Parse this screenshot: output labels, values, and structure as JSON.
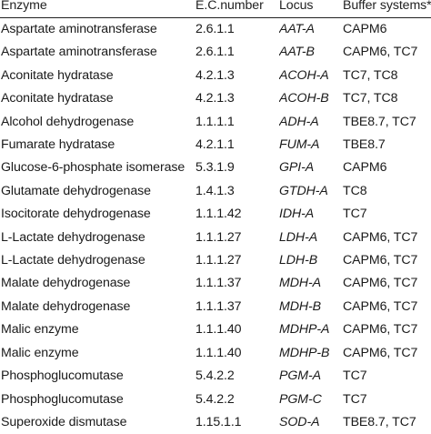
{
  "table": {
    "headers": [
      "Enzyme",
      "E.C.number",
      "Locus",
      "Buffer systems*"
    ],
    "rows": [
      {
        "enzyme": "Aspartate aminotransferase",
        "ec": "2.6.1.1",
        "locus": "AAT-A",
        "buffer": "CAPM6"
      },
      {
        "enzyme": "Aspartate aminotransferase",
        "ec": "2.6.1.1",
        "locus": "AAT-B",
        "buffer": "CAPM6, TC7"
      },
      {
        "enzyme": "Aconitate hydratase",
        "ec": "4.2.1.3",
        "locus": "ACOH-A",
        "buffer": "TC7, TC8"
      },
      {
        "enzyme": "Aconitate hydratase",
        "ec": "4.2.1.3",
        "locus": "ACOH-B",
        "buffer": "TC7, TC8"
      },
      {
        "enzyme": "Alcohol dehydrogenase",
        "ec": "1.1.1.1",
        "locus": "ADH-A",
        "buffer": "TBE8.7, TC7"
      },
      {
        "enzyme": "Fumarate hydratase",
        "ec": "4.2.1.1",
        "locus": "FUM-A",
        "buffer": "TBE8.7"
      },
      {
        "enzyme": "Glucose-6-phosphate isomerase",
        "ec": "5.3.1.9",
        "locus": "GPI-A",
        "buffer": "CAPM6"
      },
      {
        "enzyme": "Glutamate dehydrogenase",
        "ec": "1.4.1.3",
        "locus": "GTDH-A",
        "buffer": "TC8"
      },
      {
        "enzyme": "Isocitorate dehydrogenase",
        "ec": "1.1.1.42",
        "locus": "IDH-A",
        "buffer": "TC7"
      },
      {
        "enzyme": "L-Lactate dehydrogenase",
        "ec": "1.1.1.27",
        "locus": "LDH-A",
        "buffer": "CAPM6, TC7"
      },
      {
        "enzyme": "L-Lactate dehydrogenase",
        "ec": "1.1.1.27",
        "locus": "LDH-B",
        "buffer": "CAPM6, TC7"
      },
      {
        "enzyme": "Malate dehydrogenase",
        "ec": "1.1.1.37",
        "locus": "MDH-A",
        "buffer": "CAPM6, TC7"
      },
      {
        "enzyme": "Malate dehydrogenase",
        "ec": "1.1.1.37",
        "locus": "MDH-B",
        "buffer": "CAPM6, TC7"
      },
      {
        "enzyme": "Malic enzyme",
        "ec": "1.1.1.40",
        "locus": "MDHP-A",
        "buffer": "CAPM6, TC7"
      },
      {
        "enzyme": "Malic enzyme",
        "ec": "1.1.1.40",
        "locus": "MDHP-B",
        "buffer": "CAPM6, TC7"
      },
      {
        "enzyme": "Phosphoglucomutase",
        "ec": "5.4.2.2",
        "locus": "PGM-A",
        "buffer": "TC7"
      },
      {
        "enzyme": "Phosphoglucomutase",
        "ec": "5.4.2.2",
        "locus": "PGM-C",
        "buffer": "TC7"
      },
      {
        "enzyme": "Superoxide dismutase",
        "ec": "1.15.1.1",
        "locus": "SOD-A",
        "buffer": "TBE8.7, TC7"
      }
    ]
  }
}
